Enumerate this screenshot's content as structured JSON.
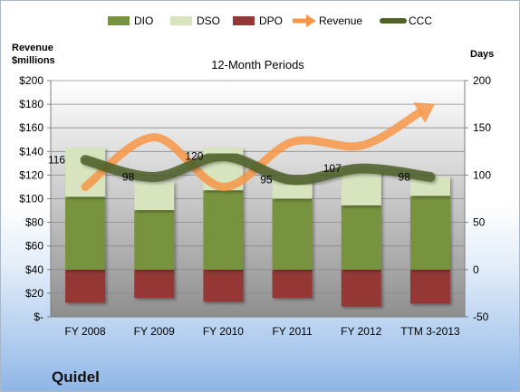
{
  "company": "Quidel",
  "chart_data": {
    "type": "bar",
    "title": "12-Month Periods",
    "categories": [
      "FY 2008",
      "FY 2009",
      "FY 2010",
      "FY 2011",
      "FY 2012",
      "TTM 3-2013"
    ],
    "left_axis": {
      "label_line1": "Revenue",
      "label_line2": "$millions",
      "range": [
        0,
        200
      ],
      "ticks": [
        "$-",
        "$20",
        "$40",
        "$60",
        "$80",
        "$100",
        "$120",
        "$140",
        "$160",
        "$180",
        "$200"
      ],
      "tick_values": [
        0,
        20,
        40,
        60,
        80,
        100,
        120,
        140,
        160,
        180,
        200
      ]
    },
    "right_axis": {
      "label": "Days",
      "range": [
        -50,
        200
      ],
      "ticks": [
        "-50",
        "0",
        "50",
        "100",
        "150",
        "200"
      ],
      "tick_values": [
        -50,
        0,
        50,
        100,
        150,
        200
      ]
    },
    "legend_position": "top",
    "legend": [
      {
        "name": "DIO",
        "kind": "bar",
        "color": "#77933c"
      },
      {
        "name": "DSO",
        "kind": "bar",
        "color": "#d7e4bd"
      },
      {
        "name": "DPO",
        "kind": "bar",
        "color": "#953735"
      },
      {
        "name": "Revenue",
        "kind": "arrow",
        "color": "#f79646"
      },
      {
        "name": "CCC",
        "kind": "line",
        "color": "#4f6228"
      }
    ],
    "series": [
      {
        "name": "DIO",
        "axis": "right",
        "values": [
          77,
          63,
          84,
          75,
          68,
          78
        ]
      },
      {
        "name": "DSO",
        "axis": "right",
        "values": [
          52,
          30,
          45,
          21,
          37,
          20
        ]
      },
      {
        "name": "DPO",
        "axis": "right",
        "values": [
          -35,
          -30,
          -34,
          -30,
          -39,
          -36
        ]
      },
      {
        "name": "Revenue",
        "axis": "left",
        "values": [
          110,
          152,
          110,
          148,
          145,
          178
        ]
      },
      {
        "name": "CCC",
        "axis": "right",
        "values": [
          116,
          98,
          120,
          95,
          107,
          98
        ]
      }
    ],
    "ccc_labels": [
      "116",
      "98",
      "120",
      "95",
      "107",
      "98"
    ],
    "grid": true
  }
}
